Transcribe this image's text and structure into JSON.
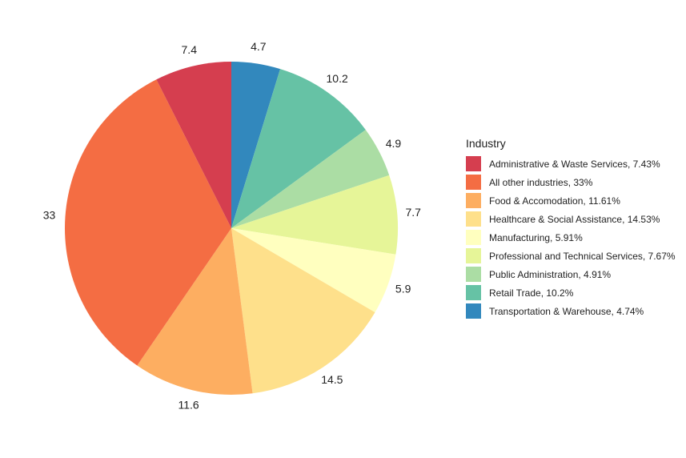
{
  "chart_data": {
    "type": "pie",
    "legend_title": "Industry",
    "legend_position": "right",
    "slices": [
      {
        "category": "Transportation & Warehouse",
        "value": 4.74,
        "label": "4.7",
        "legend": "Transportation & Warehouse, 4.74%",
        "color": "#3288BD"
      },
      {
        "category": "Retail Trade",
        "value": 10.2,
        "label": "10.2",
        "legend": "Retail Trade, 10.2%",
        "color": "#66C2A5"
      },
      {
        "category": "Public Administration",
        "value": 4.91,
        "label": "4.9",
        "legend": "Public Administration, 4.91%",
        "color": "#ABDDA4"
      },
      {
        "category": "Professional and Technical Services",
        "value": 7.67,
        "label": "7.7",
        "legend": "Professional and Technical Services, 7.67%",
        "color": "#E6F598"
      },
      {
        "category": "Manufacturing",
        "value": 5.91,
        "label": "5.9",
        "legend": "Manufacturing, 5.91%",
        "color": "#FFFFBF"
      },
      {
        "category": "Healthcare & Social Assistance",
        "value": 14.53,
        "label": "14.5",
        "legend": "Healthcare & Social Assistance, 14.53%",
        "color": "#FEE08B"
      },
      {
        "category": "Food & Accomodation",
        "value": 11.61,
        "label": "11.6",
        "legend": "Food & Accomodation, 11.61%",
        "color": "#FDAE61"
      },
      {
        "category": "All other industries",
        "value": 33,
        "label": "33",
        "legend": "All other industries, 33%",
        "color": "#F46D43"
      },
      {
        "category": "Administrative & Waste Services",
        "value": 7.43,
        "label": "7.4",
        "legend": "Administrative & Waste Services, 7.43%",
        "color": "#D53E4F"
      }
    ],
    "legend_order": [
      "Administrative & Waste Services",
      "All other industries",
      "Food & Accomodation",
      "Healthcare & Social Assistance",
      "Manufacturing",
      "Professional and Technical Services",
      "Public Administration",
      "Retail Trade",
      "Transportation & Warehouse"
    ]
  }
}
